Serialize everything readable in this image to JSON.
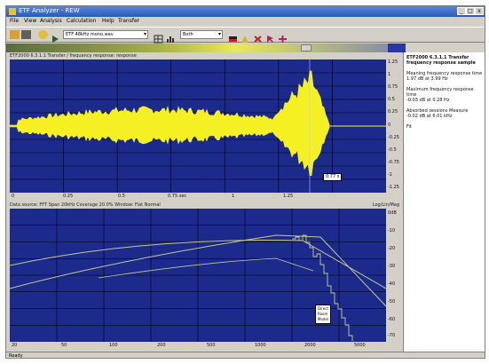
{
  "window": {
    "title": "ETF Analyzer - REW",
    "minimize": "_",
    "maximize": "□",
    "close": "x"
  },
  "menu": [
    "File",
    "View",
    "Analysis",
    "Calculation",
    "Help",
    "Transfer"
  ],
  "toolbar": {
    "input_combo": "ETF 48kHz mono.wav",
    "mode_combo": "Both"
  },
  "top_panel": {
    "header": "ETF2000  6.3.1.1  Transfer / frequency response: response",
    "cursor_label": "0.77 s",
    "y_ticks": [
      "1.25",
      "1",
      "0.75",
      "0.5",
      "0.25",
      "0",
      "-0.25",
      "-0.5",
      "-0.75",
      "-1",
      "-1.25"
    ],
    "x_ticks": [
      "0",
      "0.25",
      "0.5",
      "0.75 sec",
      "1",
      "1.25"
    ]
  },
  "bottom_panel": {
    "header": "Data source: FFT  Span 20kHz  Coverage 20.0%  Window: Flat   Normal",
    "right_label": "Log/Lin/Mag",
    "y_ticks": [
      "0dB",
      "-10",
      "-20",
      "-30",
      "-40",
      "-50",
      "-60",
      "-70"
    ],
    "x_ticks": [
      "20",
      "50",
      "100",
      "200",
      "500",
      "1000",
      "2000",
      "5000"
    ],
    "legend": [
      "Direct",
      "Room",
      "Model"
    ]
  },
  "side_panel": {
    "title": "ETF2000  6.3.1.1 Transfer frequency response sample",
    "lines": [
      "Meaning frequency response time",
      "1.97 dB at 3.99 Hz",
      "",
      "Maximum frequency response time",
      "-0.03 dB at 0.28 Hz",
      "",
      "Absorbed sessions Measure",
      "-0.02 dB at 6.01 kHz",
      "",
      "Fit"
    ]
  },
  "status": "Ready",
  "colors": {
    "plot_bg": "#1c2a8c",
    "signal": "#f5f023",
    "grid": "#000000",
    "curve": "#c8c890"
  }
}
